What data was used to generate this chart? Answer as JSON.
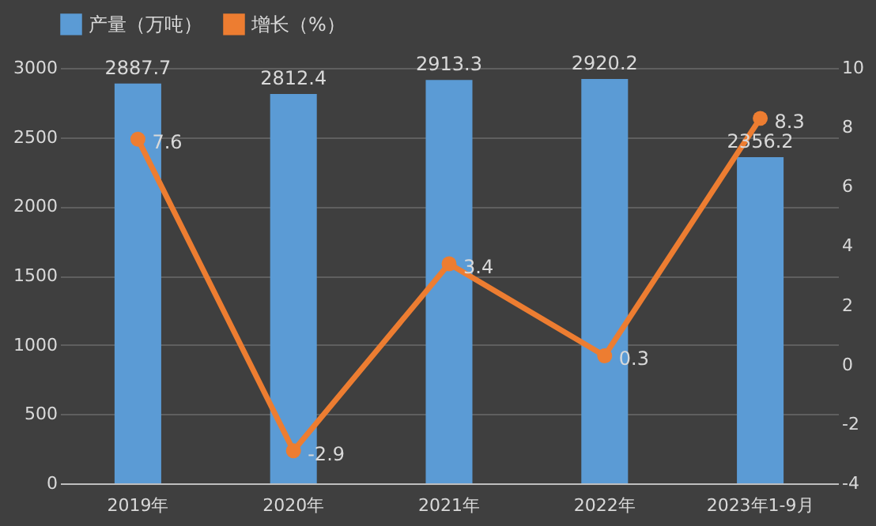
{
  "chart_data": {
    "type": "bar",
    "categories": [
      "2019年",
      "2020年",
      "2021年",
      "2022年",
      "2023年1-9月"
    ],
    "series": [
      {
        "name": "产量（万吨）",
        "color": "#5b9bd5",
        "values": [
          2887.7,
          2812.4,
          2913.3,
          2920.2,
          2356.2
        ]
      },
      {
        "name": "增长（%）",
        "type": "line",
        "axis": "y2",
        "color": "#ed7d31",
        "values": [
          7.6,
          -2.9,
          3.4,
          0.3,
          8.3
        ]
      }
    ],
    "ylim": [
      0,
      3000
    ],
    "yticks": [
      0,
      500,
      1000,
      1500,
      2000,
      2500,
      3000
    ],
    "y2lim": [
      -4,
      10
    ],
    "y2ticks": [
      -4,
      -2,
      0,
      2,
      4,
      6,
      8,
      10
    ],
    "data_labels": true,
    "grid": "y",
    "legend": "top",
    "marker": "circle",
    "line_style": "solid"
  }
}
